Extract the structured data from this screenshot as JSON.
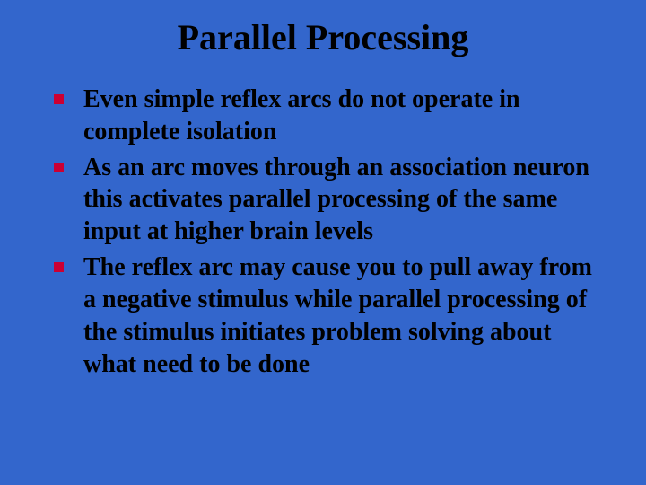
{
  "slide": {
    "title": "Parallel Processing",
    "background_color": "#3366cc",
    "title_fontsize": 40,
    "body_fontsize": 28,
    "bullet_color": "#cc0033",
    "text_color": "#000000",
    "font_family": "Times New Roman",
    "bullets": [
      {
        "text": "Even simple reflex arcs do not operate in complete isolation"
      },
      {
        "text": "As an arc moves through an association neuron this activates parallel processing of the same input at higher brain levels"
      },
      {
        "text": "The reflex arc may cause you to pull away from a negative stimulus while parallel processing of the stimulus initiates problem solving about what need to be done"
      }
    ]
  }
}
